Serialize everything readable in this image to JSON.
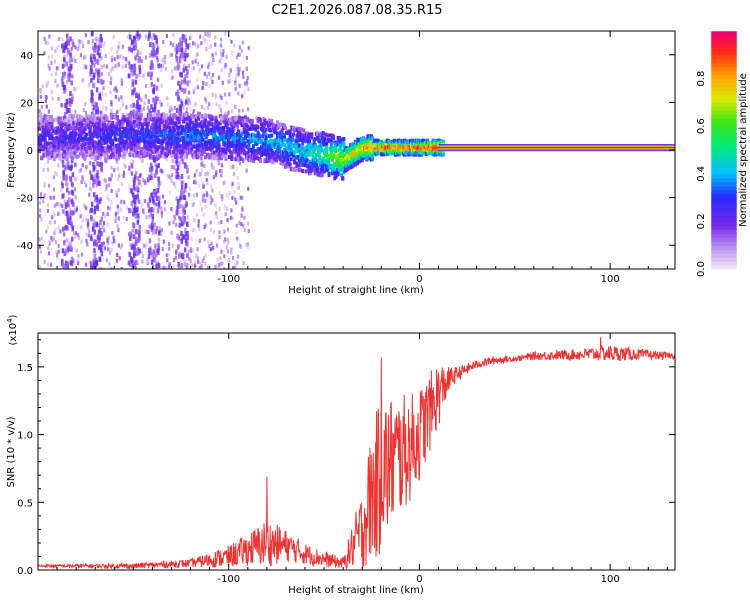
{
  "title": "C2E1.2026.087.08.35.R15",
  "chart_data": [
    {
      "type": "heatmap",
      "xlabel": "Height of straight line (km)",
      "ylabel": "Frequency (Hz)",
      "xlim": [
        -200,
        134
      ],
      "ylim": [
        -50,
        50
      ],
      "xticks": [
        -100,
        0,
        100
      ],
      "xtick_labels": [
        "-100",
        "0",
        "100"
      ],
      "yticks": [
        -40,
        -20,
        0,
        20,
        40
      ],
      "ytick_labels": [
        "-40",
        "-20",
        "0",
        "20",
        "40"
      ],
      "colorbar": {
        "label": "Normalized spectral amplitude",
        "range": [
          0,
          1
        ],
        "ticks": [
          0.0,
          0.2,
          0.4,
          0.6,
          0.8
        ],
        "tick_labels": [
          "0.0",
          "0.2",
          "0.4",
          "0.6",
          "0.8"
        ]
      },
      "ridge": {
        "x": [
          -200,
          -150,
          -120,
          -100,
          -80,
          -60,
          -50,
          -40,
          -30,
          -20,
          -10,
          0,
          10,
          134
        ],
        "freq": [
          5,
          6,
          6,
          5,
          4,
          -1,
          -2,
          -4,
          1,
          1,
          1,
          1,
          1,
          1
        ],
        "amplitude": [
          0.25,
          0.3,
          0.35,
          0.35,
          0.4,
          0.45,
          0.55,
          0.75,
          0.85,
          0.9,
          0.9,
          0.95,
          1.0,
          1.0
        ]
      },
      "steady_band": {
        "x": [
          10,
          134
        ],
        "freq": 1,
        "half_width": 1.5
      }
    },
    {
      "type": "line",
      "xlabel": "Height of straight line (km)",
      "ylabel": "SNR (10 * v/v)",
      "scale_label": "(x10",
      "scale_exponent": "4",
      "xlim": [
        -200,
        134
      ],
      "ylim": [
        0,
        1.75
      ],
      "xticks": [
        -100,
        0,
        100
      ],
      "xtick_labels": [
        "-100",
        "0",
        "100"
      ],
      "yticks": [
        0.0,
        0.5,
        1.0,
        1.5
      ],
      "ytick_labels": [
        "0.0",
        "0.5",
        "1.0",
        "1.5"
      ],
      "color": "#ee3333",
      "envelope": {
        "x": [
          -200,
          -150,
          -120,
          -100,
          -90,
          -80,
          -70,
          -60,
          -50,
          -40,
          -30,
          -25,
          -20,
          -15,
          -10,
          -5,
          0,
          5,
          10,
          15,
          20,
          30,
          40,
          50,
          60,
          80,
          100,
          134
        ],
        "base": [
          0.03,
          0.03,
          0.05,
          0.1,
          0.15,
          0.2,
          0.18,
          0.12,
          0.08,
          0.05,
          0.3,
          0.55,
          0.7,
          0.8,
          0.85,
          0.9,
          1.0,
          1.15,
          1.3,
          1.4,
          1.45,
          1.52,
          1.55,
          1.56,
          1.58,
          1.59,
          1.6,
          1.58
        ],
        "noise": [
          0.01,
          0.02,
          0.03,
          0.08,
          0.12,
          0.18,
          0.12,
          0.08,
          0.06,
          0.04,
          0.3,
          0.5,
          0.6,
          0.5,
          0.45,
          0.4,
          0.35,
          0.3,
          0.25,
          0.1,
          0.05,
          0.03,
          0.03,
          0.02,
          0.03,
          0.04,
          0.06,
          0.02
        ]
      },
      "peaks": [
        {
          "x": -80,
          "y": 0.69
        },
        {
          "x": -20,
          "y": 1.57
        },
        {
          "x": 95,
          "y": 1.72
        }
      ]
    }
  ]
}
